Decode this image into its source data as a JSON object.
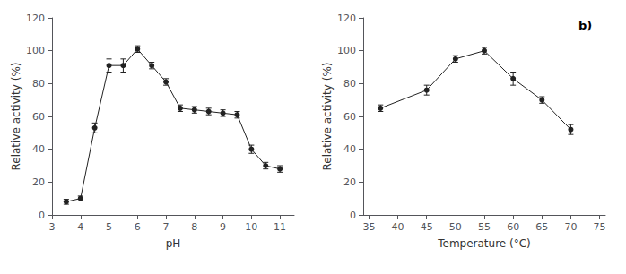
{
  "chart_data": [
    {
      "type": "line",
      "x": [
        3.5,
        4.0,
        4.5,
        5.0,
        5.5,
        6.0,
        6.5,
        7.0,
        7.5,
        8.0,
        8.5,
        9.0,
        9.5,
        10.0,
        10.5,
        11.0
      ],
      "values": [
        8,
        10,
        53,
        91,
        91,
        101,
        91,
        81,
        65,
        64,
        63,
        62,
        61,
        40,
        30,
        28
      ],
      "yerr": [
        1.5,
        1.5,
        3,
        4,
        4,
        2,
        2,
        2,
        2,
        2,
        2,
        2,
        2,
        2.5,
        2,
        2
      ],
      "xlabel": "pH",
      "ylabel": "Relative activity (%)",
      "xlim": [
        3.0,
        11.5
      ],
      "ylim": [
        0,
        120
      ],
      "xticks": [
        3,
        4,
        5,
        6,
        7,
        8,
        9,
        10,
        11
      ],
      "yticks": [
        0,
        20,
        40,
        60,
        80,
        100,
        120
      ],
      "grid": false,
      "color": "#222222",
      "marker": "circle",
      "line_style": "solid"
    },
    {
      "type": "line",
      "x": [
        37,
        45,
        50,
        55,
        60,
        65,
        70
      ],
      "values": [
        65,
        76,
        95,
        100,
        83,
        70,
        52
      ],
      "yerr": [
        2,
        3,
        2,
        2,
        4,
        2,
        3
      ],
      "xlabel": "Temperature (°C)",
      "ylabel": "Relative activity (%)",
      "xlim": [
        34,
        76
      ],
      "ylim": [
        0,
        120
      ],
      "xticks": [
        35,
        40,
        45,
        50,
        55,
        60,
        65,
        70,
        75
      ],
      "yticks": [
        0,
        20,
        40,
        60,
        80,
        100,
        120
      ],
      "grid": false,
      "color": "#222222",
      "marker": "circle",
      "line_style": "solid",
      "annotation": "b)"
    }
  ]
}
